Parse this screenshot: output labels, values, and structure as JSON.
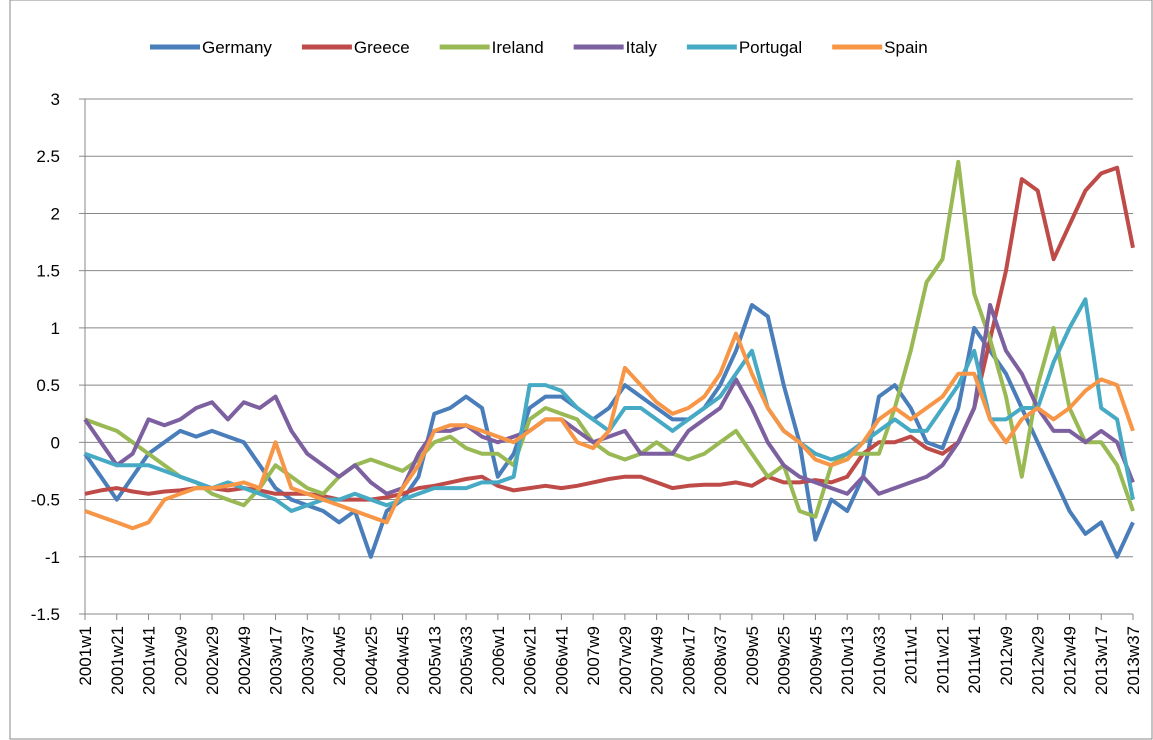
{
  "chart_data": {
    "type": "line",
    "categories": [
      "2001w1",
      null,
      "2001w21",
      null,
      "2001w41",
      null,
      "2002w9",
      null,
      "2002w29",
      null,
      "2002w49",
      null,
      "2003w17",
      null,
      "2003w37",
      null,
      "2004w5",
      null,
      "2004w25",
      null,
      "2004w45",
      null,
      "2005w13",
      null,
      "2005w33",
      null,
      "2006w1",
      null,
      "2006w21",
      null,
      "2006w41",
      null,
      "2007w9",
      null,
      "2007w29",
      null,
      "2007w49",
      null,
      "2008w17",
      null,
      "2008w37",
      null,
      "2009w5",
      null,
      "2009w25",
      null,
      "2009w45",
      null,
      "2010w13",
      null,
      "2010w33",
      null,
      "2011w1",
      null,
      "2011w21",
      null,
      "2011w41",
      null,
      "2012w9",
      null,
      "2012w29",
      null,
      "2012w49",
      null,
      "2013w17",
      null,
      "2013w37"
    ],
    "series": [
      {
        "name": "Germany",
        "color": "#4a7ebb",
        "values": [
          -0.1,
          -0.3,
          -0.5,
          -0.3,
          -0.1,
          0.0,
          0.1,
          0.05,
          0.1,
          0.05,
          0.0,
          -0.2,
          -0.4,
          -0.5,
          -0.55,
          -0.6,
          -0.7,
          -0.6,
          -1.0,
          -0.6,
          -0.5,
          -0.3,
          0.25,
          0.3,
          0.4,
          0.3,
          -0.3,
          -0.1,
          0.3,
          0.4,
          0.4,
          0.3,
          0.2,
          0.3,
          0.5,
          0.4,
          0.3,
          0.2,
          0.2,
          0.3,
          0.5,
          0.8,
          1.2,
          1.1,
          0.5,
          0.0,
          -0.85,
          -0.5,
          -0.6,
          -0.3,
          0.4,
          0.5,
          0.3,
          0.0,
          -0.05,
          0.3,
          1.0,
          0.8,
          0.6,
          0.3,
          0.0,
          -0.3,
          -0.6,
          -0.8,
          -0.7,
          -1.0,
          -0.7
        ]
      },
      {
        "name": "Greece",
        "color": "#be4b48",
        "values": [
          -0.45,
          -0.42,
          -0.4,
          -0.43,
          -0.45,
          -0.43,
          -0.42,
          -0.4,
          -0.4,
          -0.42,
          -0.4,
          -0.42,
          -0.45,
          -0.45,
          -0.45,
          -0.47,
          -0.5,
          -0.5,
          -0.5,
          -0.48,
          -0.45,
          -0.4,
          -0.38,
          -0.35,
          -0.32,
          -0.3,
          -0.38,
          -0.42,
          -0.4,
          -0.38,
          -0.4,
          -0.38,
          -0.35,
          -0.32,
          -0.3,
          -0.3,
          -0.35,
          -0.4,
          -0.38,
          -0.37,
          -0.37,
          -0.35,
          -0.38,
          -0.3,
          -0.35,
          -0.35,
          -0.33,
          -0.35,
          -0.3,
          -0.1,
          0.0,
          0.0,
          0.05,
          -0.05,
          -0.1,
          0.0,
          0.3,
          0.9,
          1.5,
          2.3,
          2.2,
          1.6,
          1.9,
          2.2,
          2.35,
          2.4,
          1.7
        ]
      },
      {
        "name": "Ireland",
        "color": "#98b954",
        "values": [
          0.2,
          0.15,
          0.1,
          0.0,
          -0.1,
          -0.2,
          -0.3,
          -0.35,
          -0.45,
          -0.5,
          -0.55,
          -0.4,
          -0.2,
          -0.3,
          -0.4,
          -0.45,
          -0.3,
          -0.2,
          -0.15,
          -0.2,
          -0.25,
          -0.15,
          0.0,
          0.05,
          -0.05,
          -0.1,
          -0.1,
          -0.2,
          0.2,
          0.3,
          0.25,
          0.2,
          0.0,
          -0.1,
          -0.15,
          -0.1,
          0.0,
          -0.1,
          -0.15,
          -0.1,
          0.0,
          0.1,
          -0.1,
          -0.3,
          -0.2,
          -0.6,
          -0.65,
          -0.2,
          -0.1,
          -0.1,
          -0.1,
          0.3,
          0.8,
          1.4,
          1.6,
          2.45,
          1.3,
          0.9,
          0.4,
          -0.3,
          0.5,
          1.0,
          0.3,
          0.0,
          0.0,
          -0.2,
          -0.6
        ]
      },
      {
        "name": "Italy",
        "color": "#7d60a0",
        "values": [
          0.2,
          0.0,
          -0.2,
          -0.1,
          0.2,
          0.15,
          0.2,
          0.3,
          0.35,
          0.2,
          0.35,
          0.3,
          0.4,
          0.1,
          -0.1,
          -0.2,
          -0.3,
          -0.2,
          -0.35,
          -0.45,
          -0.4,
          -0.1,
          0.1,
          0.1,
          0.15,
          0.05,
          0.0,
          0.05,
          0.1,
          0.2,
          0.2,
          0.1,
          0.0,
          0.05,
          0.1,
          -0.1,
          -0.1,
          -0.1,
          0.1,
          0.2,
          0.3,
          0.55,
          0.3,
          0.0,
          -0.2,
          -0.3,
          -0.35,
          -0.4,
          -0.45,
          -0.3,
          -0.45,
          -0.4,
          -0.35,
          -0.3,
          -0.2,
          0.0,
          0.3,
          1.2,
          0.8,
          0.6,
          0.3,
          0.1,
          0.1,
          0.0,
          0.1,
          0.0,
          -0.35
        ]
      },
      {
        "name": "Portugal",
        "color": "#46aac5",
        "values": [
          -0.1,
          -0.15,
          -0.2,
          -0.2,
          -0.2,
          -0.25,
          -0.3,
          -0.35,
          -0.4,
          -0.35,
          -0.4,
          -0.45,
          -0.5,
          -0.6,
          -0.55,
          -0.5,
          -0.5,
          -0.45,
          -0.5,
          -0.55,
          -0.5,
          -0.45,
          -0.4,
          -0.4,
          -0.4,
          -0.35,
          -0.35,
          -0.3,
          0.5,
          0.5,
          0.45,
          0.3,
          0.2,
          0.1,
          0.3,
          0.3,
          0.2,
          0.1,
          0.2,
          0.3,
          0.4,
          0.6,
          0.8,
          0.3,
          0.1,
          0.0,
          -0.1,
          -0.15,
          -0.1,
          0.0,
          0.1,
          0.2,
          0.1,
          0.1,
          0.3,
          0.5,
          0.8,
          0.2,
          0.2,
          0.3,
          0.3,
          0.7,
          1.0,
          1.25,
          0.3,
          0.2,
          -0.5
        ]
      },
      {
        "name": "Spain",
        "color": "#f79646",
        "values": [
          -0.6,
          -0.65,
          -0.7,
          -0.75,
          -0.7,
          -0.5,
          -0.45,
          -0.4,
          -0.4,
          -0.38,
          -0.35,
          -0.4,
          0.0,
          -0.4,
          -0.45,
          -0.5,
          -0.55,
          -0.6,
          -0.65,
          -0.7,
          -0.4,
          -0.2,
          0.1,
          0.15,
          0.15,
          0.1,
          0.05,
          0.0,
          0.1,
          0.2,
          0.2,
          0.0,
          -0.05,
          0.1,
          0.65,
          0.5,
          0.35,
          0.25,
          0.3,
          0.4,
          0.6,
          0.95,
          0.6,
          0.3,
          0.1,
          0.0,
          -0.15,
          -0.2,
          -0.15,
          0.0,
          0.2,
          0.3,
          0.2,
          0.3,
          0.4,
          0.6,
          0.6,
          0.2,
          0.0,
          0.2,
          0.3,
          0.2,
          0.3,
          0.45,
          0.55,
          0.5,
          0.1
        ]
      }
    ],
    "ylim": [
      -1.5,
      3
    ],
    "yticks": [
      -1.5,
      -1,
      -0.5,
      0,
      0.5,
      1,
      1.5,
      2,
      2.5,
      3
    ],
    "grid": true,
    "legend": "top"
  }
}
